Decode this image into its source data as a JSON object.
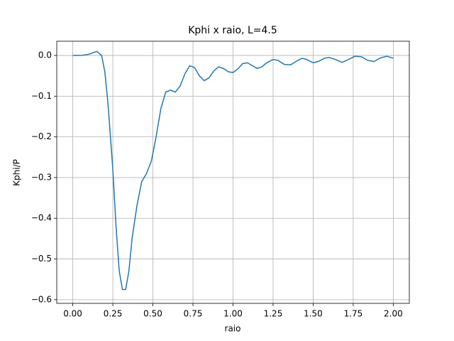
{
  "chart_data": {
    "type": "line",
    "title": "Kphi x raio, L=4.5",
    "x_label": "raio",
    "y_label": "Kphi/P",
    "x": [
      0,
      0.05,
      0.1,
      0.15,
      0.18,
      0.2,
      0.22,
      0.25,
      0.27,
      0.29,
      0.31,
      0.33,
      0.35,
      0.37,
      0.4,
      0.43,
      0.46,
      0.49,
      0.52,
      0.55,
      0.58,
      0.61,
      0.64,
      0.67,
      0.7,
      0.73,
      0.76,
      0.79,
      0.82,
      0.85,
      0.88,
      0.91,
      0.94,
      0.97,
      1.0,
      1.03,
      1.06,
      1.09,
      1.12,
      1.15,
      1.18,
      1.21,
      1.25,
      1.28,
      1.32,
      1.36,
      1.4,
      1.43,
      1.46,
      1.5,
      1.53,
      1.57,
      1.6,
      1.64,
      1.68,
      1.72,
      1.76,
      1.8,
      1.84,
      1.88,
      1.92,
      1.96,
      2.0
    ],
    "series": [
      {
        "color": "#1f77b4",
        "values": [
          0,
          0,
          0.003,
          0.01,
          0.0,
          -0.04,
          -0.12,
          -0.28,
          -0.42,
          -0.53,
          -0.575,
          -0.575,
          -0.53,
          -0.45,
          -0.37,
          -0.31,
          -0.29,
          -0.26,
          -0.2,
          -0.13,
          -0.09,
          -0.085,
          -0.09,
          -0.075,
          -0.045,
          -0.025,
          -0.03,
          -0.05,
          -0.062,
          -0.055,
          -0.038,
          -0.028,
          -0.032,
          -0.04,
          -0.042,
          -0.033,
          -0.02,
          -0.018,
          -0.025,
          -0.032,
          -0.028,
          -0.018,
          -0.01,
          -0.012,
          -0.022,
          -0.023,
          -0.013,
          -0.007,
          -0.01,
          -0.018,
          -0.015,
          -0.007,
          -0.005,
          -0.01,
          -0.017,
          -0.01,
          -0.002,
          -0.003,
          -0.012,
          -0.015,
          -0.006,
          -0.002,
          -0.007
        ]
      }
    ],
    "xlim": [
      -0.1,
      2.1
    ],
    "ylim": [
      -0.609,
      0.035
    ],
    "xticks": [
      {
        "value": 0,
        "label": "0.00"
      },
      {
        "value": 0.25,
        "label": "0.25"
      },
      {
        "value": 0.5,
        "label": "0.50"
      },
      {
        "value": 0.75,
        "label": "0.75"
      },
      {
        "value": 1,
        "label": "1.00"
      },
      {
        "value": 1.25,
        "label": "1.25"
      },
      {
        "value": 1.5,
        "label": "1.50"
      },
      {
        "value": 1.75,
        "label": "1.75"
      },
      {
        "value": 2,
        "label": "2.00"
      }
    ],
    "yticks": [
      {
        "value": 0,
        "label": "0.0"
      },
      {
        "value": -0.1,
        "label": "−0.1"
      },
      {
        "value": -0.2,
        "label": "−0.2"
      },
      {
        "value": -0.3,
        "label": "−0.3"
      },
      {
        "value": -0.4,
        "label": "−0.4"
      },
      {
        "value": -0.5,
        "label": "−0.5"
      },
      {
        "value": -0.6,
        "label": "−0.6"
      }
    ],
    "grid": true
  }
}
